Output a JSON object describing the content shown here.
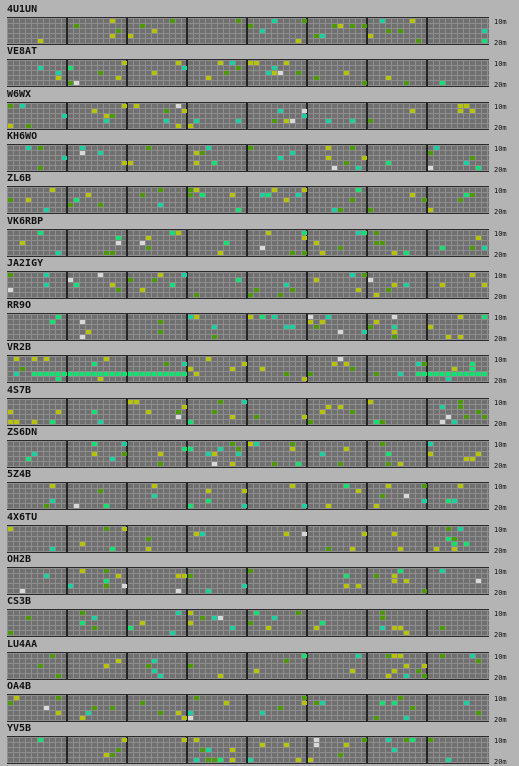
{
  "band_labels": {
    "top": "10m",
    "bottom": "20m"
  },
  "colors": {
    "background": "#b4b4b4",
    "grid": "#707070",
    "gridline": "#8e8e8e",
    "separator": "#252525",
    "signal_levels": [
      "#4a9a00",
      "#b7c200",
      "#1ad0a0",
      "#12e070",
      "#d8d8d8"
    ]
  },
  "stations": [
    {
      "callsign": "4U1UN",
      "signal_level": [],
      "time_slot": [],
      "band_row": []
    },
    {
      "callsign": "VE8AT"
    },
    {
      "callsign": "W6WX"
    },
    {
      "callsign": "KH6WO"
    },
    {
      "callsign": "ZL6B"
    },
    {
      "callsign": "VK6RBP"
    },
    {
      "callsign": "JA2IGY"
    },
    {
      "callsign": "RR9O"
    },
    {
      "callsign": "VR2B"
    },
    {
      "callsign": "4S7B"
    },
    {
      "callsign": "ZS6DN"
    },
    {
      "callsign": "5Z4B"
    },
    {
      "callsign": "4X6TU"
    },
    {
      "callsign": "OH2B"
    },
    {
      "callsign": "CS3B"
    },
    {
      "callsign": "LU4AA"
    },
    {
      "callsign": "OA4B"
    },
    {
      "callsign": "YV5B"
    }
  ]
}
